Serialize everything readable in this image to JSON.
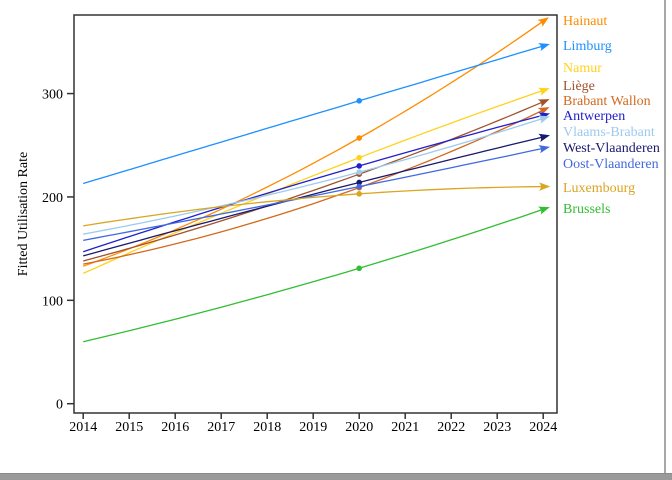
{
  "chart_data": {
    "type": "line",
    "title": "",
    "xlabel": "",
    "ylabel": "Fitted Utilisation Rate",
    "x_ticks": [
      2014,
      2015,
      2016,
      2017,
      2018,
      2019,
      2020,
      2021,
      2022,
      2023,
      2024
    ],
    "y_ticks": [
      0,
      100,
      200,
      300
    ],
    "xlim": [
      2013.8,
      2024.3
    ],
    "ylim": [
      -9,
      376
    ],
    "grid": false,
    "legend_position": "right",
    "anchor_years": [
      2014,
      2020,
      2024
    ],
    "marker_year": 2020,
    "line_end_style": "arrowhead",
    "series": [
      {
        "name": "Hainaut",
        "color": "#FF8C00",
        "values": [
          133,
          257,
          370
        ],
        "marker_value": 257,
        "legend_y": 20
      },
      {
        "name": "Limburg",
        "color": "#1E90FF",
        "values": [
          213,
          293,
          346
        ],
        "marker_value": 293,
        "legend_y": 45
      },
      {
        "name": "Namur",
        "color": "#FFD21E",
        "values": [
          126,
          238,
          303
        ],
        "marker_value": 238,
        "legend_y": 67
      },
      {
        "name": "Liège",
        "color": "#A0522D",
        "values": [
          138,
          222,
          292
        ],
        "marker_value": 222,
        "legend_y": 85
      },
      {
        "name": "Brabant Wallon",
        "color": "#D2691E",
        "values": [
          135,
          209,
          284
        ],
        "marker_value": 209,
        "legend_y": 100
      },
      {
        "name": "Antwerpen",
        "color": "#2020CC",
        "values": [
          147,
          230,
          279
        ],
        "marker_value": 230,
        "legend_y": 115
      },
      {
        "name": "Vlaams-Brabant",
        "color": "#9CCBEE",
        "values": [
          164,
          224,
          276
        ],
        "marker_value": 224,
        "legend_y": 131
      },
      {
        "name": "West-Vlaanderen",
        "color": "#191970",
        "values": [
          143,
          214,
          258
        ],
        "marker_value": 214,
        "legend_y": 147
      },
      {
        "name": "Oost-Vlaanderen",
        "color": "#4169E1",
        "values": [
          158,
          210,
          247
        ],
        "marker_value": 210,
        "legend_y": 163
      },
      {
        "name": "Luxembourg",
        "color": "#DAA520",
        "values": [
          172,
          203,
          210
        ],
        "marker_value": 203,
        "legend_y": 187
      },
      {
        "name": "Brussels",
        "color": "#32BE32",
        "values": [
          60,
          131,
          188
        ],
        "marker_value": 131,
        "legend_y": 208
      }
    ]
  }
}
